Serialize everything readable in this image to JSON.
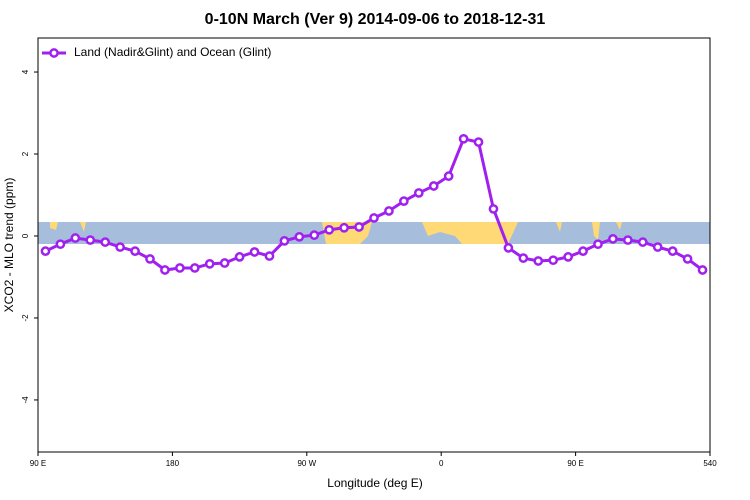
{
  "chart_data": {
    "type": "line",
    "title": "0-10N March (Ver 9)   2014-09-06 to 2018-12-31",
    "xlabel": "Longitude (deg E)",
    "ylabel": "XCO2 - MLO trend (ppm)",
    "xlim": [
      90,
      540
    ],
    "xticks": [
      {
        "value": 90,
        "label": "90 E"
      },
      180,
      {
        "value": 270,
        "label": "90 W"
      },
      {
        "value": 360,
        "label": "0"
      },
      {
        "value": 450,
        "label": "90 E"
      },
      540
    ],
    "ylim": [
      -5.27,
      4.83
    ],
    "yticks": [
      -4,
      -2,
      0,
      2,
      4
    ],
    "legend": "top-left",
    "x": [
      95,
      105,
      115,
      125,
      135,
      145,
      155,
      165,
      175,
      185,
      195,
      205,
      215,
      225,
      235,
      245,
      255,
      265,
      275,
      285,
      295,
      305,
      315,
      325,
      335,
      345,
      355,
      365,
      375,
      385,
      395,
      405,
      415,
      425,
      435,
      445,
      455,
      465,
      475,
      485,
      495,
      505,
      515,
      525,
      535
    ],
    "series": [
      {
        "name": "Land (Nadir&Glint) and Ocean (Glint)",
        "color": "#a020f0",
        "values": [
          -0.37,
          -0.2,
          -0.05,
          -0.1,
          -0.15,
          -0.27,
          -0.37,
          -0.56,
          -0.83,
          -0.78,
          -0.78,
          -0.68,
          -0.66,
          -0.51,
          -0.39,
          -0.49,
          -0.12,
          -0.02,
          0.02,
          0.15,
          0.2,
          0.22,
          0.44,
          0.61,
          0.85,
          1.05,
          1.22,
          1.46,
          2.37,
          2.29,
          0.66,
          -0.29,
          -0.54,
          -0.61,
          -0.59,
          -0.51,
          -0.37,
          -0.2,
          -0.07,
          -0.1,
          -0.15,
          -0.27,
          -0.37,
          -0.56,
          -0.83
        ]
      }
    ]
  }
}
